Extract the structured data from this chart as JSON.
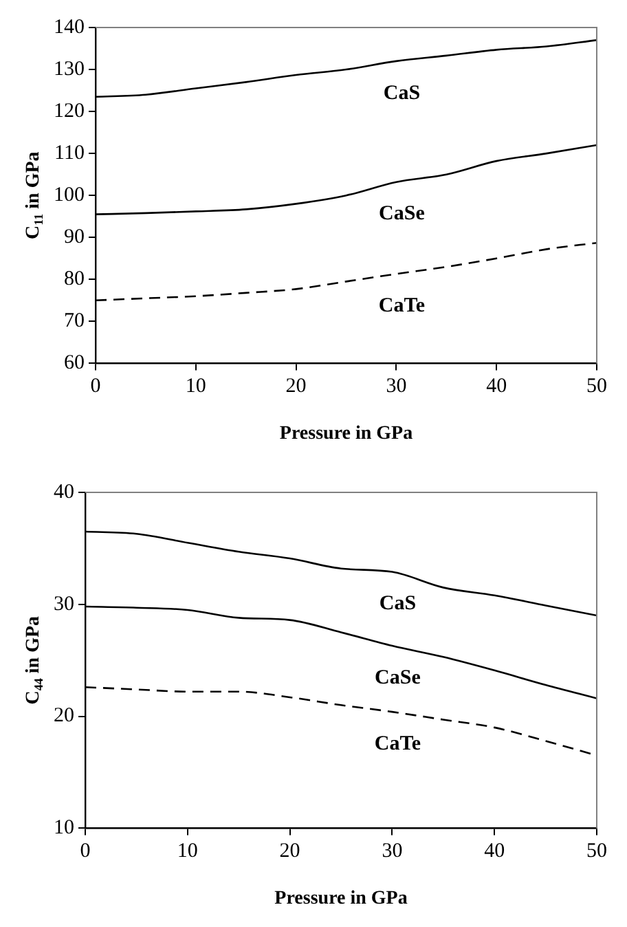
{
  "chart_data": [
    {
      "type": "line",
      "xlabel": "Pressure in GPa",
      "ylabel": "C$_{11}$ in GPa",
      "x": [
        0,
        5,
        10,
        15,
        20,
        25,
        30,
        35,
        40,
        45,
        50
      ],
      "xlim": [
        0,
        50
      ],
      "xticks": [
        0,
        10,
        20,
        30,
        40,
        50
      ],
      "ylim": [
        60,
        140
      ],
      "yticks": [
        60,
        70,
        80,
        90,
        100,
        110,
        120,
        130,
        140
      ],
      "grid": false,
      "legend": false,
      "marker": "none",
      "series": [
        {
          "name": "CaS",
          "color": "#000000",
          "line_style": "solid",
          "values": [
            123.5,
            124,
            125.5,
            127,
            128.7,
            130,
            132,
            133.3,
            134.7,
            135.5,
            137
          ]
        },
        {
          "name": "CaSe",
          "color": "#000000",
          "line_style": "solid",
          "values": [
            95.5,
            95.8,
            96.2,
            96.7,
            98,
            100,
            103.2,
            105,
            108.2,
            110,
            112
          ]
        },
        {
          "name": "CaTe",
          "color": "#000000",
          "line_style": "dashed",
          "values": [
            75,
            75.5,
            76,
            76.8,
            77.7,
            79.5,
            81.3,
            83,
            85,
            87.2,
            88.7
          ]
        }
      ]
    },
    {
      "type": "line",
      "xlabel": "Pressure in GPa",
      "ylabel": "C$_{44}$ in GPa",
      "x": [
        0,
        5,
        10,
        15,
        20,
        25,
        30,
        35,
        40,
        45,
        50
      ],
      "xlim": [
        0,
        50
      ],
      "xticks": [
        0,
        10,
        20,
        30,
        40,
        50
      ],
      "ylim": [
        10,
        40
      ],
      "yticks": [
        10,
        20,
        30,
        40
      ],
      "grid": false,
      "legend": false,
      "marker": "none",
      "series": [
        {
          "name": "CaS",
          "color": "#000000",
          "line_style": "solid",
          "values": [
            36.5,
            36.3,
            35.5,
            34.7,
            34.1,
            33.2,
            32.9,
            31.5,
            30.8,
            29.9,
            29
          ]
        },
        {
          "name": "CaSe",
          "color": "#000000",
          "line_style": "solid",
          "values": [
            29.8,
            29.7,
            29.5,
            28.8,
            28.6,
            27.5,
            26.3,
            25.3,
            24.1,
            22.8,
            21.6
          ]
        },
        {
          "name": "CaTe",
          "color": "#000000",
          "line_style": "dashed",
          "values": [
            22.6,
            22.4,
            22.2,
            22.2,
            21.7,
            21,
            20.4,
            19.7,
            19,
            17.8,
            16.5
          ]
        }
      ]
    }
  ]
}
